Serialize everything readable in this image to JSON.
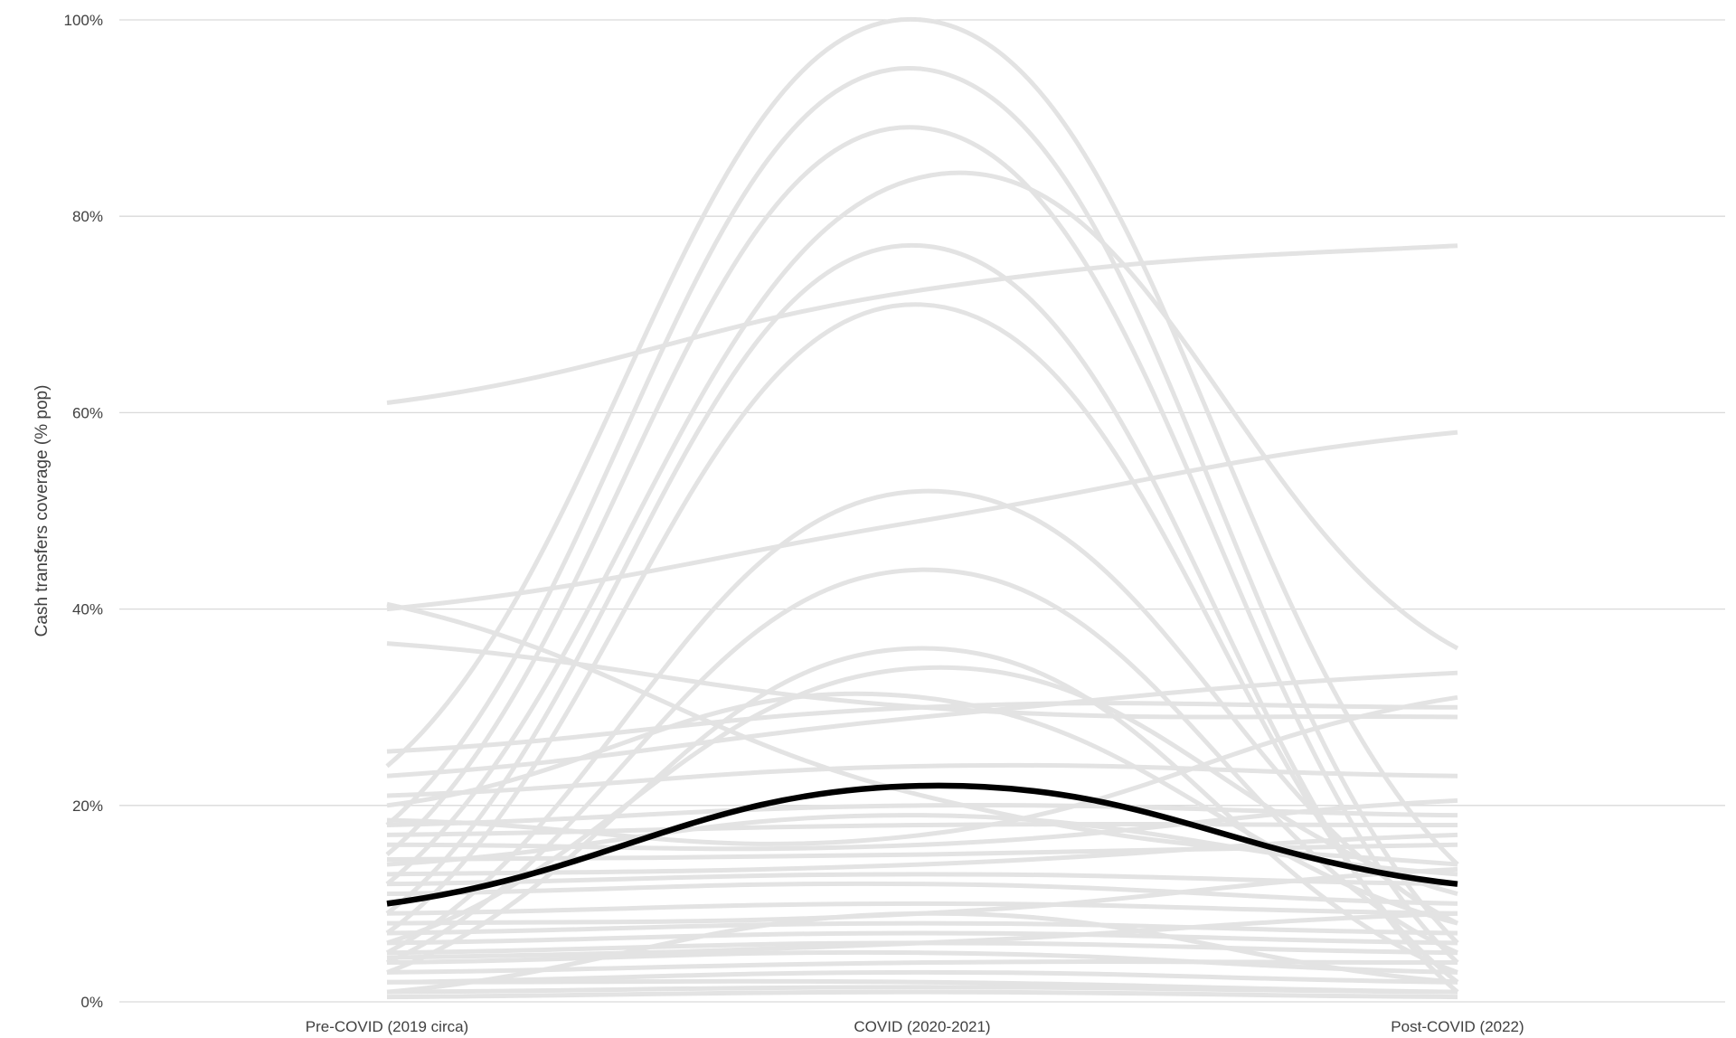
{
  "chart_data": {
    "type": "line",
    "title": "",
    "xlabel": "",
    "ylabel": "Cash transfers coverage (% pop)",
    "categories": [
      "Pre-COVID (2019 circa)",
      "COVID (2020-2021)",
      "Post-COVID (2022)"
    ],
    "ylim": [
      0,
      100
    ],
    "y_ticks": [
      "0%",
      "20%",
      "40%",
      "60%",
      "80%",
      "100%"
    ],
    "grid": true,
    "legend": "none",
    "colors": {
      "background_series": "#e3e3e3",
      "highlight_series": "#000000",
      "gridline": "#d9d9d9"
    },
    "highlight_series": {
      "values": [
        10,
        22,
        12
      ]
    },
    "series": [
      {
        "values": [
          61,
          72.5,
          77
        ]
      },
      {
        "values": [
          40,
          49,
          58
        ]
      },
      {
        "values": [
          24,
          100,
          14
        ]
      },
      {
        "values": [
          18,
          95,
          6
        ]
      },
      {
        "values": [
          15,
          89,
          4
        ]
      },
      {
        "values": [
          12,
          84,
          36
        ]
      },
      {
        "values": [
          9,
          77,
          1
        ]
      },
      {
        "values": [
          7,
          71,
          2
        ]
      },
      {
        "values": [
          5,
          52,
          8
        ]
      },
      {
        "values": [
          4,
          44,
          5
        ]
      },
      {
        "values": [
          3,
          36,
          3
        ]
      },
      {
        "values": [
          6,
          34,
          11
        ]
      },
      {
        "values": [
          40.5,
          21,
          14
        ]
      },
      {
        "values": [
          36.5,
          30,
          29
        ]
      },
      {
        "values": [
          25.5,
          30,
          30
        ]
      },
      {
        "values": [
          23,
          29,
          33.5
        ]
      },
      {
        "values": [
          21,
          24,
          23
        ]
      },
      {
        "values": [
          20,
          31,
          8
        ]
      },
      {
        "values": [
          18.5,
          17,
          31
        ]
      },
      {
        "values": [
          18,
          20,
          19
        ]
      },
      {
        "values": [
          17,
          18,
          18
        ]
      },
      {
        "values": [
          16,
          16,
          20.5
        ]
      },
      {
        "values": [
          14.5,
          15,
          16
        ]
      },
      {
        "values": [
          14,
          19,
          13
        ]
      },
      {
        "values": [
          13,
          14,
          17
        ]
      },
      {
        "values": [
          12,
          13,
          12
        ]
      },
      {
        "values": [
          11,
          12,
          10
        ]
      },
      {
        "values": [
          9,
          10,
          9
        ]
      },
      {
        "values": [
          8,
          9,
          13.5
        ]
      },
      {
        "values": [
          7,
          8,
          7
        ]
      },
      {
        "values": [
          6,
          7,
          6
        ]
      },
      {
        "values": [
          5,
          6,
          5
        ]
      },
      {
        "values": [
          4.5,
          6,
          9
        ]
      },
      {
        "values": [
          4,
          5,
          3
        ]
      },
      {
        "values": [
          3,
          4,
          4
        ]
      },
      {
        "values": [
          2,
          3,
          2
        ]
      },
      {
        "values": [
          2,
          2,
          1
        ]
      },
      {
        "values": [
          1,
          1.5,
          1
        ]
      },
      {
        "values": [
          0.5,
          1,
          0.5
        ]
      },
      {
        "values": [
          1,
          9,
          2
        ]
      }
    ]
  }
}
